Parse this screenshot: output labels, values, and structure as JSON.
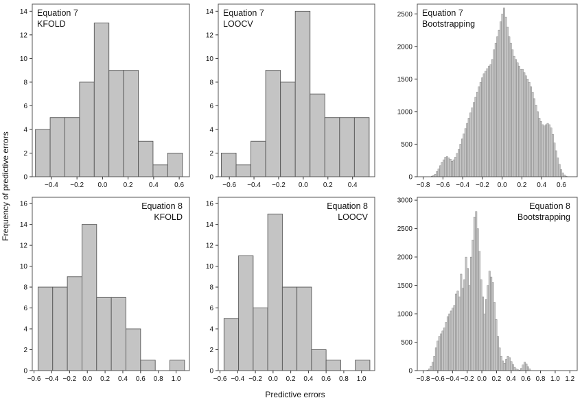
{
  "figure": {
    "ylabel": "Frequency of predictive errors",
    "xlabel": "Predictive errors"
  },
  "chart_data": [
    {
      "type": "bar",
      "title": "Equation 7",
      "subtitle": "KFOLD",
      "label_pos": "top-left",
      "bin_edges": [
        -0.525,
        -0.41,
        -0.295,
        -0.18,
        -0.065,
        0.05,
        0.165,
        0.28,
        0.395,
        0.51,
        0.625
      ],
      "values": [
        4,
        5,
        5,
        8,
        13,
        9,
        9,
        3,
        1,
        2
      ],
      "xlim": [
        -0.55,
        0.68
      ],
      "ylim": [
        0,
        14.6
      ],
      "xticks": [
        -0.4,
        -0.2,
        0.0,
        0.2,
        0.4,
        0.6
      ],
      "xticklabels": [
        "−0.4",
        "−0.2",
        "0.0",
        "0.2",
        "0.4",
        "0.6"
      ],
      "yticks": [
        0,
        2,
        4,
        6,
        8,
        10,
        12,
        14
      ],
      "yticklabels": [
        "0",
        "2",
        "4",
        "6",
        "8",
        "10",
        "12",
        "14"
      ]
    },
    {
      "type": "bar",
      "title": "Equation 7",
      "subtitle": "LOOCV",
      "label_pos": "top-left",
      "bin_edges": [
        -0.665,
        -0.545,
        -0.425,
        -0.305,
        -0.185,
        -0.065,
        0.055,
        0.175,
        0.295,
        0.415,
        0.535
      ],
      "values": [
        2,
        1,
        3,
        9,
        8,
        14,
        7,
        5,
        5,
        5
      ],
      "xlim": [
        -0.69,
        0.58
      ],
      "ylim": [
        0,
        14.6
      ],
      "xticks": [
        -0.6,
        -0.4,
        -0.2,
        0.0,
        0.2,
        0.4
      ],
      "xticklabels": [
        "−0.6",
        "−0.4",
        "−0.2",
        "0.0",
        "0.2",
        "0.4"
      ],
      "yticks": [
        0,
        2,
        4,
        6,
        8,
        10,
        12,
        14
      ],
      "yticklabels": [
        "0",
        "2",
        "4",
        "6",
        "8",
        "10",
        "12",
        "14"
      ]
    },
    {
      "type": "bar",
      "title": "Equation 7",
      "subtitle": "Bootstrapping",
      "label_pos": "top-left",
      "bin_start": -0.72,
      "bin_width": 0.017,
      "values": [
        10,
        20,
        40,
        80,
        120,
        170,
        220,
        260,
        300,
        310,
        290,
        270,
        240,
        260,
        300,
        360,
        420,
        500,
        580,
        660,
        740,
        820,
        900,
        980,
        1060,
        1140,
        1220,
        1300,
        1380,
        1450,
        1520,
        1580,
        1620,
        1660,
        1700,
        1720,
        1800,
        1950,
        2050,
        2150,
        2250,
        2380,
        2500,
        2590,
        2450,
        2300,
        2150,
        2050,
        1950,
        1850,
        1800,
        1750,
        1700,
        1650,
        1650,
        1600,
        1550,
        1500,
        1450,
        1380,
        1300,
        1200,
        1100,
        1000,
        900,
        850,
        800,
        780,
        800,
        820,
        800,
        750,
        650,
        520,
        400,
        290,
        190,
        110,
        60,
        30,
        10
      ],
      "xlim": [
        -0.86,
        0.76
      ],
      "ylim": [
        0,
        2650
      ],
      "xticks": [
        -0.8,
        -0.6,
        -0.4,
        -0.2,
        0.0,
        0.2,
        0.4,
        0.6
      ],
      "xticklabels": [
        "−0.8",
        "−0.6",
        "−0.4",
        "−0.2",
        "0.0",
        "0.2",
        "0.4",
        "0.6"
      ],
      "yticks": [
        0,
        500,
        1000,
        1500,
        2000,
        2500
      ],
      "yticklabels": [
        "0",
        "500",
        "1000",
        "1500",
        "2000",
        "2500"
      ]
    },
    {
      "type": "bar",
      "title": "Equation 8",
      "subtitle": "KFOLD",
      "label_pos": "top-right",
      "bin_edges": [
        -0.555,
        -0.39,
        -0.225,
        -0.06,
        0.105,
        0.27,
        0.435,
        0.6,
        0.765,
        0.93,
        1.095
      ],
      "values": [
        8,
        8,
        9,
        14,
        7,
        7,
        4,
        1,
        0,
        1
      ],
      "xlim": [
        -0.62,
        1.15
      ],
      "ylim": [
        0,
        16.6
      ],
      "xticks": [
        -0.6,
        -0.4,
        -0.2,
        0.0,
        0.2,
        0.4,
        0.6,
        0.8,
        1.0
      ],
      "xticklabels": [
        "−0.6",
        "−0.4",
        "−0.2",
        "0.0",
        "0.2",
        "0.4",
        "0.6",
        "0.8",
        "1.0"
      ],
      "yticks": [
        0,
        2,
        4,
        6,
        8,
        10,
        12,
        14,
        16
      ],
      "yticklabels": [
        "0",
        "2",
        "4",
        "6",
        "8",
        "10",
        "12",
        "14",
        "16"
      ]
    },
    {
      "type": "bar",
      "title": "Equation 8",
      "subtitle": "LOOCV",
      "label_pos": "top-right",
      "bin_edges": [
        -0.555,
        -0.39,
        -0.225,
        -0.06,
        0.105,
        0.27,
        0.435,
        0.6,
        0.765,
        0.93,
        1.095
      ],
      "values": [
        5,
        11,
        6,
        15,
        8,
        8,
        2,
        1,
        0,
        1
      ],
      "xlim": [
        -0.62,
        1.15
      ],
      "ylim": [
        0,
        16.6
      ],
      "xticks": [
        -0.6,
        -0.4,
        -0.2,
        0.0,
        0.2,
        0.4,
        0.6,
        0.8,
        1.0
      ],
      "xticklabels": [
        "−0.6",
        "−0.4",
        "−0.2",
        "0.0",
        "0.2",
        "0.4",
        "0.6",
        "0.8",
        "1.0"
      ],
      "yticks": [
        0,
        2,
        4,
        6,
        8,
        10,
        12,
        14,
        16
      ],
      "yticklabels": [
        "0",
        "2",
        "4",
        "6",
        "8",
        "10",
        "12",
        "14",
        "16"
      ]
    },
    {
      "type": "bar",
      "title": "Equation 8",
      "subtitle": "Bootstrapping",
      "label_pos": "top-right",
      "bin_start": -0.75,
      "bin_width": 0.0228,
      "values": [
        10,
        30,
        80,
        150,
        250,
        400,
        520,
        600,
        650,
        700,
        750,
        850,
        950,
        1000,
        1050,
        1100,
        1150,
        1350,
        1400,
        1300,
        1700,
        1450,
        1600,
        2000,
        1800,
        1500,
        2000,
        2300,
        2700,
        2800,
        2500,
        2100,
        1600,
        1300,
        1000,
        1250,
        1500,
        1750,
        1650,
        1550,
        1200,
        900,
        600,
        400,
        250,
        170,
        130,
        200,
        250,
        230,
        160,
        110,
        60,
        30,
        15,
        10,
        40,
        100,
        150,
        120,
        70,
        30
      ],
      "xlim": [
        -0.88,
        1.3
      ],
      "ylim": [
        0,
        3050
      ],
      "xticks": [
        -0.8,
        -0.6,
        -0.4,
        -0.2,
        0.0,
        0.2,
        0.4,
        0.6,
        0.8,
        1.0,
        1.2
      ],
      "xticklabels": [
        "−0.8",
        "−0.6",
        "−0.4",
        "−0.2",
        "0.0",
        "0.2",
        "0.4",
        "0.6",
        "0.8",
        "1.0",
        "1.2"
      ],
      "yticks": [
        0,
        500,
        1000,
        1500,
        2000,
        2500,
        3000
      ],
      "yticklabels": [
        "0",
        "500",
        "1000",
        "1500",
        "2000",
        "2500",
        "3000"
      ]
    }
  ]
}
